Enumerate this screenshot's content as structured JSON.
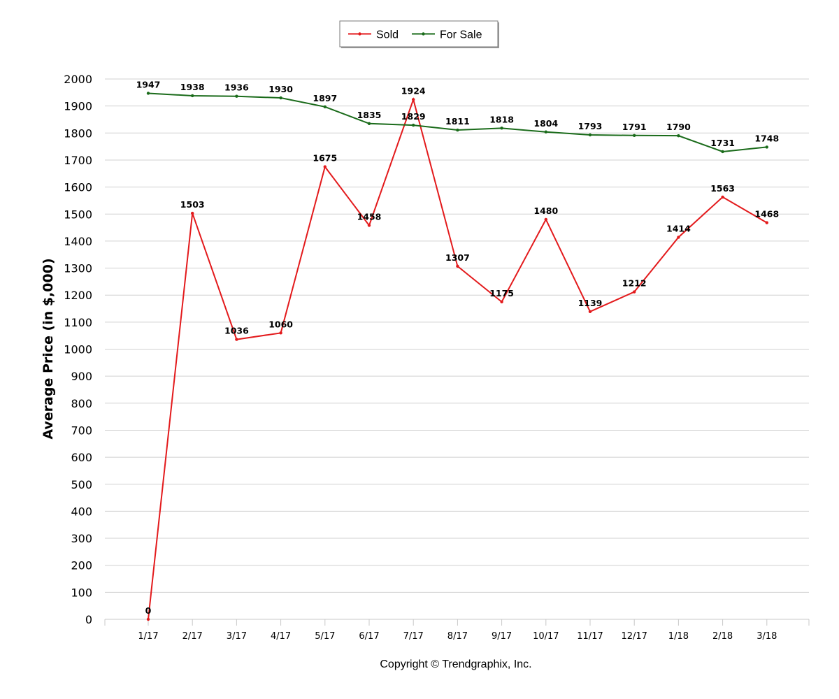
{
  "chart_data": {
    "type": "line",
    "categories": [
      "1/17",
      "2/17",
      "3/17",
      "4/17",
      "5/17",
      "6/17",
      "7/17",
      "8/17",
      "9/17",
      "10/17",
      "11/17",
      "12/17",
      "1/18",
      "2/18",
      "3/18"
    ],
    "series": [
      {
        "name": "Sold",
        "color": "#e31a1c",
        "values": [
          0,
          1503,
          1036,
          1060,
          1675,
          1458,
          1924,
          1307,
          1175,
          1480,
          1139,
          1212,
          1414,
          1563,
          1468
        ]
      },
      {
        "name": "For Sale",
        "color": "#1a6b1a",
        "values": [
          1947,
          1938,
          1936,
          1930,
          1897,
          1835,
          1829,
          1811,
          1818,
          1804,
          1793,
          1791,
          1790,
          1731,
          1748
        ]
      }
    ],
    "ylabel": "Average Price (in $,000)",
    "xlabel": "",
    "ylim": [
      0,
      2000
    ],
    "yticks": [
      0,
      100,
      200,
      300,
      400,
      500,
      600,
      700,
      800,
      900,
      1000,
      1100,
      1200,
      1300,
      1400,
      1500,
      1600,
      1700,
      1800,
      1900,
      2000
    ],
    "grid": true,
    "legend_position": "top-center"
  },
  "footer": {
    "copyright": "Copyright © Trendgraphix, Inc."
  }
}
